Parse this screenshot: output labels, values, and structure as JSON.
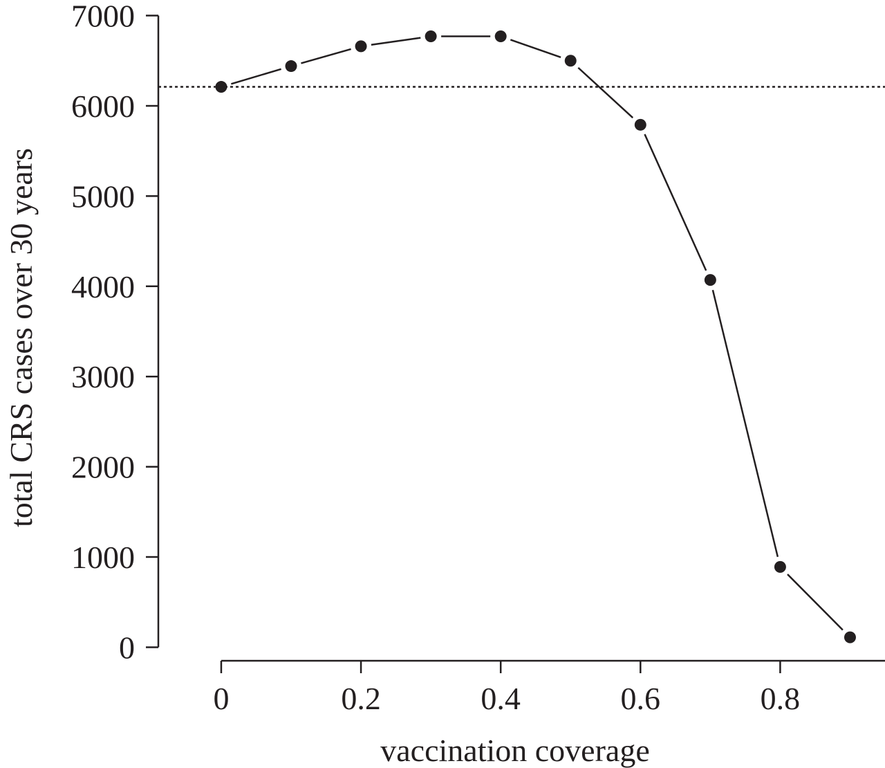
{
  "chart_data": {
    "type": "line",
    "title": "",
    "xlabel": "vaccination coverage",
    "ylabel": "total CRS cases over 30 years",
    "xlim": [
      -0.09,
      0.95
    ],
    "ylim": [
      -150,
      7050
    ],
    "x_ticks": [
      0,
      0.2,
      0.4,
      0.6,
      0.8
    ],
    "x_tick_labels": [
      "0",
      "0.2",
      "0.4",
      "0.6",
      "0.8"
    ],
    "y_ticks": [
      0,
      1000,
      2000,
      3000,
      4000,
      5000,
      6000,
      7000
    ],
    "y_tick_labels": [
      "0",
      "1000",
      "2000",
      "3000",
      "4000",
      "5000",
      "6000",
      "7000"
    ],
    "grid": false,
    "legend": "none",
    "series": [
      {
        "x": [
          0,
          0.1,
          0.2,
          0.3,
          0.4,
          0.5,
          0.6,
          0.7,
          0.8,
          0.9
        ],
        "y": [
          6210,
          6440,
          6660,
          6770,
          6770,
          6500,
          5790,
          4070,
          890,
          110
        ],
        "color": "#231f20",
        "marker": "circle"
      }
    ],
    "reference_lines": [
      {
        "orientation": "horizontal",
        "y": 6210,
        "style": "dotted",
        "color": "#231f20"
      }
    ]
  }
}
